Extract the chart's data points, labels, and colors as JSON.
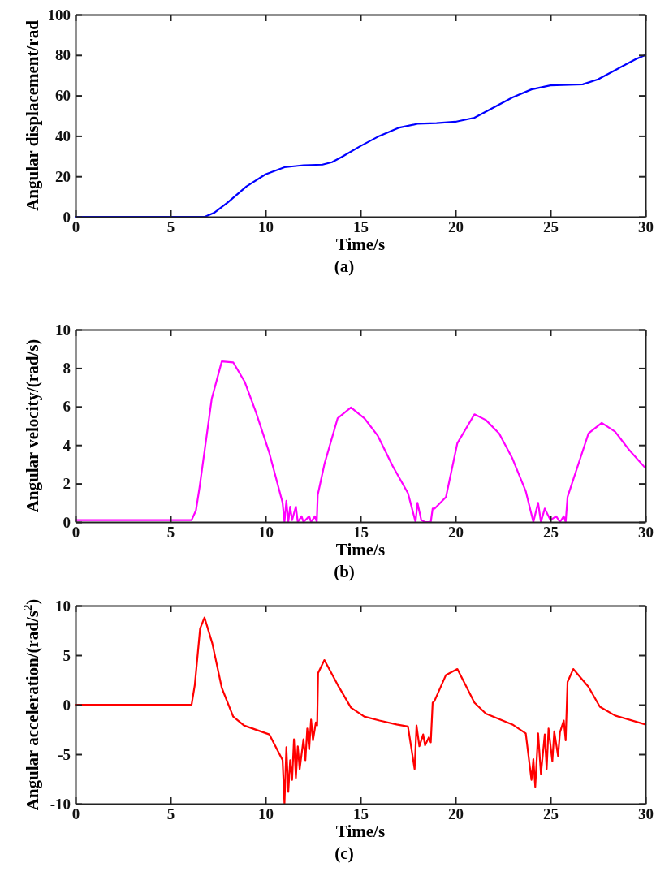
{
  "chart_data": [
    {
      "type": "line",
      "xlabel": "Time/s",
      "ylabel": "Angular displacement/rad",
      "annotations": [
        "(a)"
      ],
      "xlim": [
        0,
        30
      ],
      "ylim": [
        0,
        100
      ],
      "xticks": [
        0,
        5,
        10,
        15,
        20,
        25,
        30
      ],
      "yticks": [
        0,
        20,
        40,
        60,
        80,
        100
      ],
      "grid": false,
      "series": [
        {
          "color": "#0000ff",
          "x": [
            0,
            6.8,
            7.3,
            8,
            9,
            10,
            11,
            12,
            13,
            13.5,
            14,
            15,
            16,
            17,
            18,
            19,
            20,
            21,
            22,
            23,
            24,
            25,
            26,
            26.7,
            27.5,
            28.5,
            29.5,
            30
          ],
          "values": [
            0,
            0,
            2,
            7,
            15,
            21,
            24.5,
            25.5,
            25.8,
            27,
            29.5,
            35,
            40,
            44,
            46,
            46.3,
            47,
            49,
            54,
            59,
            63,
            65,
            65.3,
            65.5,
            68,
            73,
            78,
            80
          ]
        }
      ]
    },
    {
      "type": "line",
      "xlabel": "Time/s",
      "ylabel": "Angular velocity/(rad/s)",
      "annotations": [
        "(b)"
      ],
      "xlim": [
        0,
        30
      ],
      "ylim": [
        0,
        10
      ],
      "xticks": [
        0,
        5,
        10,
        15,
        20,
        25,
        30
      ],
      "yticks": [
        0,
        2,
        4,
        6,
        8,
        10
      ],
      "grid": false,
      "series": [
        {
          "color": "#ff00ff",
          "x": [
            0,
            6.11,
            6.34,
            6.53,
            7.17,
            7.7,
            8.3,
            8.9,
            9.5,
            10.2,
            10.9,
            11,
            11.1,
            11.2,
            11.3,
            11.4,
            11.6,
            11.7,
            11.9,
            12,
            12.3,
            12.4,
            12.6,
            12.7,
            12.75,
            13.1,
            13.8,
            14.5,
            15.2,
            15.9,
            16.7,
            17.5,
            17.9,
            18,
            18.2,
            18.4,
            18.7,
            18.8,
            18.9,
            19.5,
            20.1,
            21,
            21.6,
            22.3,
            23,
            23.7,
            24.1,
            24.2,
            24.35,
            24.5,
            24.7,
            24.8,
            25,
            25.3,
            25.5,
            25.7,
            25.8,
            25.9,
            27,
            27.7,
            28.4,
            29.1,
            30
          ],
          "values": [
            0.1,
            0.1,
            0.6,
            1.8,
            6.4,
            8.35,
            8.3,
            7.3,
            5.7,
            3.6,
            1,
            0,
            1.1,
            0,
            0.8,
            0.1,
            0.8,
            0,
            0.3,
            0,
            0.3,
            0,
            0.3,
            0,
            1.4,
            3,
            5.4,
            5.95,
            5.4,
            4.5,
            2.9,
            1.5,
            0,
            1,
            0.1,
            0,
            0,
            0.7,
            0.7,
            1.3,
            4.1,
            5.6,
            5.3,
            4.6,
            3.3,
            1.6,
            0,
            0.4,
            1,
            0,
            0.7,
            0.5,
            0.1,
            0.3,
            0,
            0.3,
            0,
            1.3,
            4.6,
            5.15,
            4.7,
            3.8,
            2.8
          ]
        }
      ]
    },
    {
      "type": "line",
      "xlabel": "Time/s",
      "ylabel": "Angular acceleration/(rad/s$^{2}$)",
      "annotations": [
        "(c)"
      ],
      "xlim": [
        0,
        30
      ],
      "ylim": [
        -10,
        10
      ],
      "xticks": [
        0,
        5,
        10,
        15,
        20,
        25,
        30
      ],
      "yticks": [
        -10,
        -5,
        0,
        5,
        10
      ],
      "grid": false,
      "series": [
        {
          "color": "#ff0000",
          "x": [
            0,
            6.11,
            6.28,
            6.56,
            6.79,
            7.2,
            7.7,
            8.3,
            8.87,
            10.2,
            10.9,
            11,
            11.1,
            11.2,
            11.3,
            11.4,
            11.5,
            11.6,
            11.7,
            11.8,
            12,
            12.1,
            12.2,
            12.3,
            12.4,
            12.5,
            12.65,
            12.72,
            12.77,
            13.1,
            13.8,
            14.5,
            15.2,
            16,
            16.9,
            17.5,
            17.85,
            17.95,
            18.1,
            18.3,
            18.4,
            18.6,
            18.7,
            18.8,
            18.9,
            19.5,
            20.1,
            21,
            21.6,
            23,
            23.7,
            24,
            24.1,
            24.2,
            24.35,
            24.5,
            24.7,
            24.8,
            24.9,
            25.1,
            25.2,
            25.4,
            25.5,
            25.7,
            25.8,
            25.9,
            26.2,
            27,
            27.6,
            28.4,
            30
          ],
          "values": [
            0,
            0,
            2,
            7.7,
            8.8,
            6.2,
            1.7,
            -1.2,
            -2.1,
            -3,
            -5.6,
            -10,
            -4.3,
            -8.8,
            -5.6,
            -7.6,
            -3.5,
            -7.4,
            -4.2,
            -6.5,
            -3.5,
            -5.6,
            -2.4,
            -4.5,
            -1.5,
            -3.6,
            -1.8,
            -2.1,
            3.2,
            4.5,
            2,
            -0.3,
            -1.2,
            -1.6,
            -2,
            -2.2,
            -6.5,
            -2.1,
            -4.2,
            -3,
            -4.1,
            -3.3,
            -3.8,
            0.2,
            0.4,
            3,
            3.6,
            0.2,
            -0.9,
            -2,
            -2.9,
            -7.6,
            -5.5,
            -8.3,
            -2.9,
            -7,
            -3,
            -6.5,
            -2.4,
            -5.7,
            -2.7,
            -5.2,
            -2.8,
            -1.6,
            -3.6,
            2.3,
            3.6,
            1.8,
            -0.2,
            -1.1,
            -2
          ]
        }
      ]
    }
  ]
}
